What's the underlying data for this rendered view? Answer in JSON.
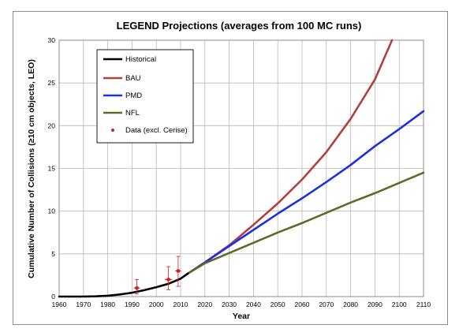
{
  "chart_data": {
    "type": "line",
    "title": "LEGEND Projections (averages from 100 MC runs)",
    "xlabel": "Year",
    "ylabel": "Cumulative Number of Collisions (≥10 cm objects, LEO)",
    "xlim": [
      1960,
      2110
    ],
    "ylim": [
      0,
      30
    ],
    "xticks": [
      1960,
      1970,
      1980,
      1990,
      2000,
      2010,
      2020,
      2030,
      2040,
      2050,
      2060,
      2070,
      2080,
      2090,
      2100,
      2110
    ],
    "yticks": [
      0,
      5,
      10,
      15,
      20,
      25,
      30
    ],
    "grid": true,
    "legend_position": "top-left",
    "series": [
      {
        "name": "Historical",
        "color": "#000000",
        "x": [
          1960,
          1970,
          1975,
          1980,
          1985,
          1990,
          1995,
          2000,
          2005,
          2010,
          2013
        ],
        "y": [
          0,
          0,
          0.03,
          0.1,
          0.25,
          0.45,
          0.75,
          1.1,
          1.5,
          2.1,
          2.7
        ]
      },
      {
        "name": "BAU",
        "color": "#b0413e",
        "x": [
          2013,
          2020,
          2030,
          2040,
          2050,
          2060,
          2070,
          2080,
          2090,
          2097
        ],
        "y": [
          2.7,
          4.0,
          6.0,
          8.4,
          10.9,
          13.7,
          16.9,
          20.8,
          25.4,
          30.0
        ]
      },
      {
        "name": "PMD",
        "color": "#1f2fe0",
        "x": [
          2013,
          2020,
          2030,
          2040,
          2050,
          2060,
          2070,
          2080,
          2090,
          2100,
          2110
        ],
        "y": [
          2.7,
          4.0,
          5.9,
          7.8,
          9.7,
          11.5,
          13.4,
          15.4,
          17.6,
          19.6,
          21.7
        ]
      },
      {
        "name": "NFL",
        "color": "#5d6b2a",
        "x": [
          2013,
          2020,
          2030,
          2040,
          2050,
          2060,
          2070,
          2080,
          2090,
          2100,
          2110
        ],
        "y": [
          2.7,
          3.9,
          5.1,
          6.3,
          7.5,
          8.6,
          9.8,
          11.0,
          12.1,
          13.3,
          14.5
        ]
      }
    ],
    "points": {
      "name": "Data (excl. Cerise)",
      "color": "#cc1f1f",
      "data": [
        {
          "x": 1992,
          "y": 1,
          "yerr_low": 0.3,
          "yerr_high": 2.0,
          "xerr": 1.2
        },
        {
          "x": 2005,
          "y": 2,
          "yerr_low": 0.8,
          "yerr_high": 3.5,
          "xerr": 1.5
        },
        {
          "x": 2009,
          "y": 3,
          "yerr_low": 1.2,
          "yerr_high": 4.7,
          "xerr": 1.2
        }
      ]
    }
  }
}
